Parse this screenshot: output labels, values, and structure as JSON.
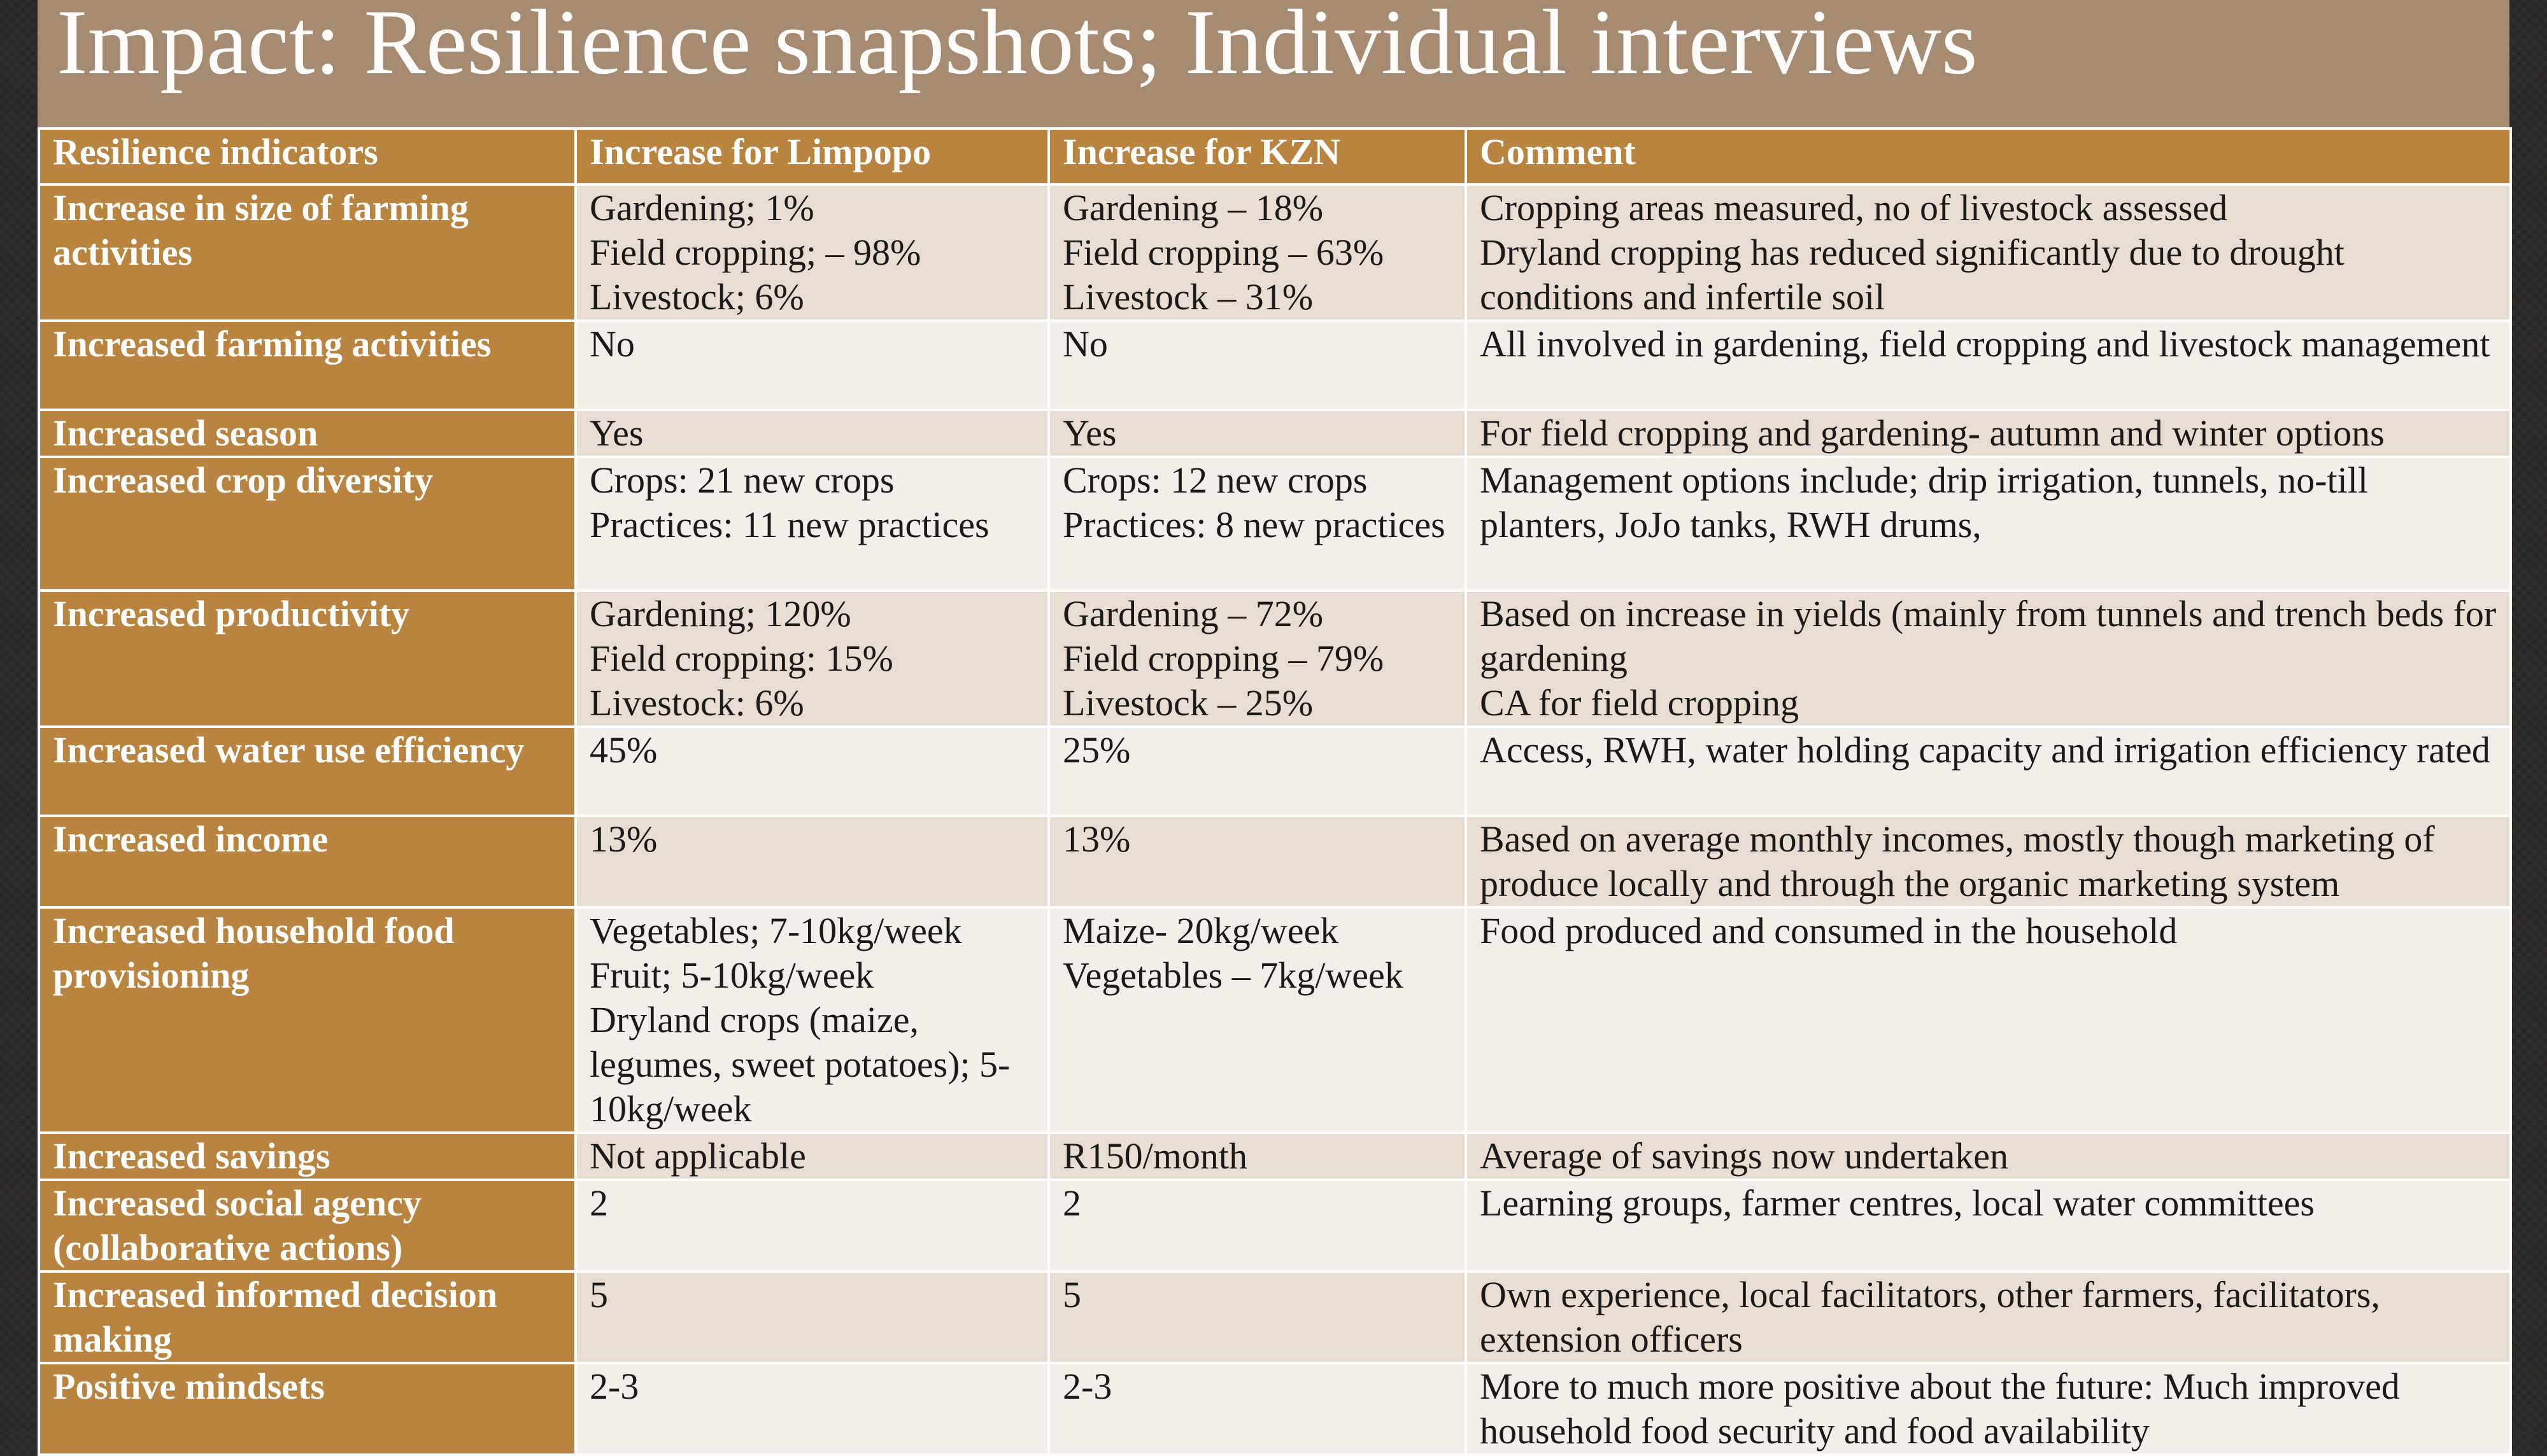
{
  "slide": {
    "title": "Impact: Resilience snapshots; Individual interviews"
  },
  "table": {
    "headers": [
      "Resilience indicators",
      "Increase for Limpopo",
      "Increase for KZN",
      "Comment"
    ],
    "rows": [
      {
        "indicator": "Increase in size of farming activities",
        "limpopo": [
          "Gardening; 1%",
          "Field cropping; – 98%",
          "Livestock; 6%"
        ],
        "kzn": [
          "Gardening – 18%",
          "Field cropping – 63%",
          "Livestock – 31%"
        ],
        "comment": [
          "Cropping areas measured, no of livestock assessed",
          "Dryland cropping has reduced significantly due to drought conditions and infertile soil"
        ]
      },
      {
        "indicator": "Increased farming activities",
        "limpopo": [
          "No"
        ],
        "kzn": [
          "No"
        ],
        "comment": [
          "All involved in gardening, field cropping and livestock management"
        ]
      },
      {
        "indicator": "Increased season",
        "limpopo": [
          "Yes"
        ],
        "kzn": [
          "Yes"
        ],
        "comment": [
          "For field cropping and gardening- autumn and winter options"
        ]
      },
      {
        "indicator": "Increased crop diversity",
        "limpopo": [
          "Crops: 21 new crops",
          "Practices: 11 new practices"
        ],
        "kzn": [
          "Crops: 12 new crops",
          "Practices: 8 new practices"
        ],
        "comment": [
          "Management options include; drip irrigation, tunnels, no-till planters, JoJo tanks, RWH drums,"
        ]
      },
      {
        "indicator": "Increased productivity",
        "limpopo": [
          "Gardening; 120%",
          "Field cropping: 15%",
          "Livestock: 6%"
        ],
        "kzn": [
          "Gardening – 72%",
          "Field cropping – 79%",
          "Livestock – 25%"
        ],
        "comment": [
          "Based on increase in yields (mainly from tunnels and trench beds for gardening",
          "CA for field cropping"
        ]
      },
      {
        "indicator": "Increased water use efficiency",
        "limpopo": [
          "45%"
        ],
        "kzn": [
          "25%"
        ],
        "comment": [
          "Access, RWH, water holding capacity and irrigation efficiency rated"
        ]
      },
      {
        "indicator": "Increased income",
        "limpopo": [
          "13%"
        ],
        "kzn": [
          "13%"
        ],
        "comment": [
          "Based on average monthly incomes, mostly though marketing of produce locally and through the organic marketing system"
        ]
      },
      {
        "indicator": "Increased household food provisioning",
        "limpopo": [
          "Vegetables; 7-10kg/week",
          "Fruit; 5-10kg/week",
          "Dryland crops (maize, legumes, sweet potatoes); 5-10kg/week"
        ],
        "kzn": [
          "Maize- 20kg/week",
          "Vegetables – 7kg/week"
        ],
        "comment": [
          "Food produced and consumed in the household"
        ]
      },
      {
        "indicator": "Increased savings",
        "limpopo": [
          "Not applicable"
        ],
        "kzn": [
          "R150/month"
        ],
        "comment": [
          "Average of savings now undertaken"
        ]
      },
      {
        "indicator": "Increased social agency (collaborative actions)",
        "limpopo": [
          "2"
        ],
        "kzn": [
          "2"
        ],
        "comment": [
          "Learning groups, farmer centres, local water committees"
        ]
      },
      {
        "indicator": "Increased informed decision making",
        "limpopo": [
          "5"
        ],
        "kzn": [
          "5"
        ],
        "comment": [
          "Own experience, local facilitators, other farmers, facilitators, extension officers"
        ]
      },
      {
        "indicator": "Positive mindsets",
        "limpopo": [
          "2-3"
        ],
        "kzn": [
          "2-3"
        ],
        "comment": [
          "More to much more positive about the future: Much improved household food security and food availability"
        ]
      }
    ]
  }
}
